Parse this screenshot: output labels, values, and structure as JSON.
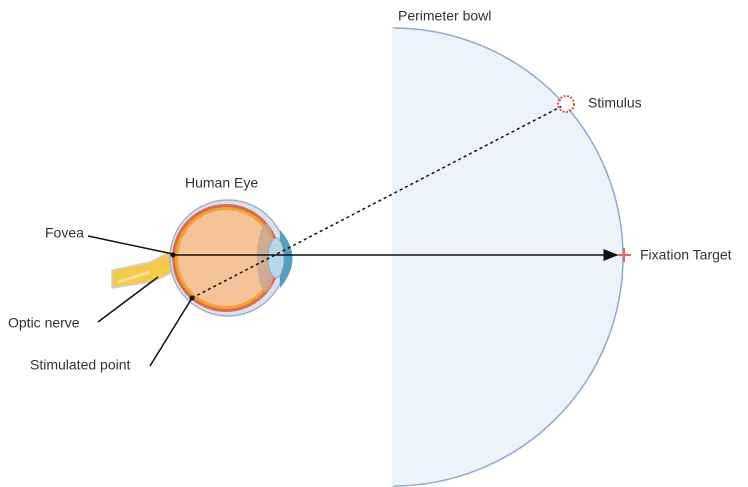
{
  "title": "Perimeter bowl",
  "labels": {
    "stimulus": "Stimulus",
    "human_eye": "Human Eye",
    "fovea": "Fovea",
    "fixation_target": "Fixation Target",
    "optic_nerve": "Optic nerve",
    "stimulated_point": "Stimulated point"
  }
}
